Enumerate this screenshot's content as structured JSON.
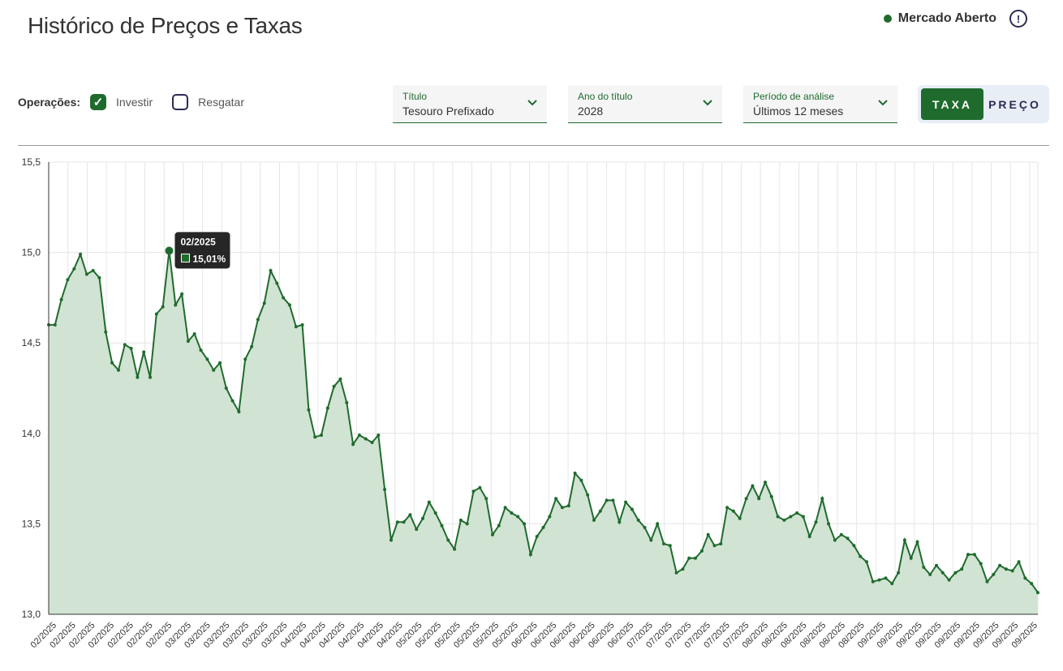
{
  "page": {
    "title": "Histórico de Preços e Taxas",
    "market_status": "Mercado Aberto",
    "market_color": "#1f6b2e"
  },
  "operations": {
    "label": "Operações:",
    "options": [
      {
        "label": "Investir",
        "checked": true
      },
      {
        "label": "Resgatar",
        "checked": false
      }
    ]
  },
  "filters": {
    "titulo": {
      "label": "Título",
      "value": "Tesouro Prefixado"
    },
    "ano": {
      "label": "Ano do título",
      "value": "2028"
    },
    "periodo": {
      "label": "Período de análise",
      "value": "Últimos 12 meses"
    }
  },
  "toggle": {
    "taxa": "TAXA",
    "preco": "PREÇO",
    "active": "taxa"
  },
  "colors": {
    "accent": "#1f6b2e",
    "fill": "#d1e3d2",
    "navy": "#2b2b55"
  },
  "tooltip": {
    "label": "02/2025",
    "value": "15,01%",
    "index": 19
  },
  "chart_data": {
    "type": "area",
    "ylim": [
      13.0,
      15.5
    ],
    "yticks": [
      "13,0",
      "13,5",
      "14,0",
      "14,5",
      "15,0",
      "15,5"
    ],
    "grid": true,
    "xlabels": [
      "02/2025",
      "02/2025",
      "02/2025",
      "02/2025",
      "02/2025",
      "02/2025",
      "02/2025",
      "03/2025",
      "03/2025",
      "03/2025",
      "03/2025",
      "03/2025",
      "03/2025",
      "04/2025",
      "04/2025",
      "04/2025",
      "04/2025",
      "04/2025",
      "04/2025",
      "05/2025",
      "05/2025",
      "05/2025",
      "05/2025",
      "05/2025",
      "05/2025",
      "06/2025",
      "06/2025",
      "06/2025",
      "06/2025",
      "06/2025",
      "06/2025",
      "07/2025",
      "07/2025",
      "07/2025",
      "07/2025",
      "07/2025",
      "07/2025",
      "08/2025",
      "08/2025",
      "08/2025",
      "08/2025",
      "08/2025",
      "08/2025",
      "09/2025",
      "09/2025",
      "09/2025",
      "09/2025",
      "09/2025",
      "09/2025",
      "09/2025",
      "09/2025",
      "09/2025"
    ],
    "series": [
      {
        "values": [
          14.6,
          14.6,
          14.74,
          14.85,
          14.91,
          14.99,
          14.88,
          14.9,
          14.86,
          14.56,
          14.39,
          14.35,
          14.49,
          14.47,
          14.31,
          14.45,
          14.31,
          14.66,
          14.7,
          15.01,
          14.71,
          14.77,
          14.51,
          14.55,
          14.46,
          14.41,
          14.35,
          14.39,
          14.25,
          14.18,
          14.12,
          14.41,
          14.48,
          14.63,
          14.72,
          14.9,
          14.83,
          14.75,
          14.71,
          14.59,
          14.6,
          14.13,
          13.98,
          13.99,
          14.14,
          14.26,
          14.3,
          14.17,
          13.94,
          13.99,
          13.97,
          13.95,
          13.99,
          13.69,
          13.41,
          13.51,
          13.51,
          13.55,
          13.47,
          13.53,
          13.62,
          13.56,
          13.49,
          13.41,
          13.36,
          13.52,
          13.5,
          13.68,
          13.7,
          13.64,
          13.44,
          13.49,
          13.59,
          13.56,
          13.54,
          13.5,
          13.33,
          13.43,
          13.48,
          13.54,
          13.64,
          13.59,
          13.6,
          13.78,
          13.74,
          13.66,
          13.52,
          13.57,
          13.63,
          13.63,
          13.51,
          13.62,
          13.58,
          13.52,
          13.48,
          13.41,
          13.5,
          13.39,
          13.38,
          13.23,
          13.25,
          13.31,
          13.31,
          13.35,
          13.44,
          13.38,
          13.39,
          13.59,
          13.57,
          13.53,
          13.64,
          13.71,
          13.64,
          13.73,
          13.65,
          13.54,
          13.52,
          13.54,
          13.56,
          13.54,
          13.43,
          13.51,
          13.64,
          13.5,
          13.41,
          13.44,
          13.42,
          13.38,
          13.32,
          13.29,
          13.18,
          13.19,
          13.2,
          13.17,
          13.23,
          13.41,
          13.31,
          13.4,
          13.26,
          13.22,
          13.27,
          13.23,
          13.19,
          13.23,
          13.25,
          13.33,
          13.33,
          13.28,
          13.18,
          13.22,
          13.27,
          13.25,
          13.24,
          13.29,
          13.2,
          13.17,
          13.12
        ]
      }
    ]
  }
}
